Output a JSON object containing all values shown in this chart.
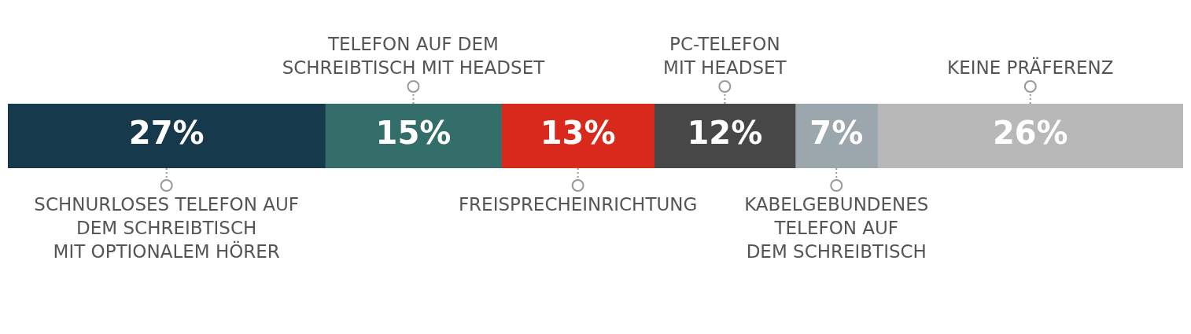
{
  "chart_data": {
    "type": "bar",
    "orientation": "horizontal",
    "stacked": true,
    "categories": [
      null
    ],
    "legend": false,
    "series": [
      {
        "name": "SCHNURLOSES TELEFON AUF\nDEM SCHREIBTISCH\nMIT OPTIONALEM HÖRER",
        "color": "#163a4c",
        "values": [
          27
        ],
        "value_labels": [
          "27%"
        ]
      },
      {
        "name": "TELEFON AUF DEM\nSCHREIBTISCH MIT HEADSET",
        "color": "#336e6b",
        "values": [
          15
        ],
        "value_labels": [
          "15%"
        ]
      },
      {
        "name": "FREISPRECHEINRICHTUNG",
        "color": "#d9291c",
        "values": [
          13
        ],
        "value_labels": [
          "13%"
        ]
      },
      {
        "name": "PC-TELEFON\nMIT HEADSET",
        "color": "#474747",
        "values": [
          12
        ],
        "value_labels": [
          "12%"
        ]
      },
      {
        "name": "KABELGEBUNDENES\nTELEFON AUF\nDEM SCHREIBTISCH",
        "color": "#9ba7ac",
        "values": [
          7
        ],
        "value_labels": [
          "7%"
        ]
      },
      {
        "name": "KEINE PRÄFERENZ",
        "color": "#b8b8b8",
        "values": [
          26
        ],
        "value_labels": [
          "26%"
        ]
      }
    ]
  }
}
